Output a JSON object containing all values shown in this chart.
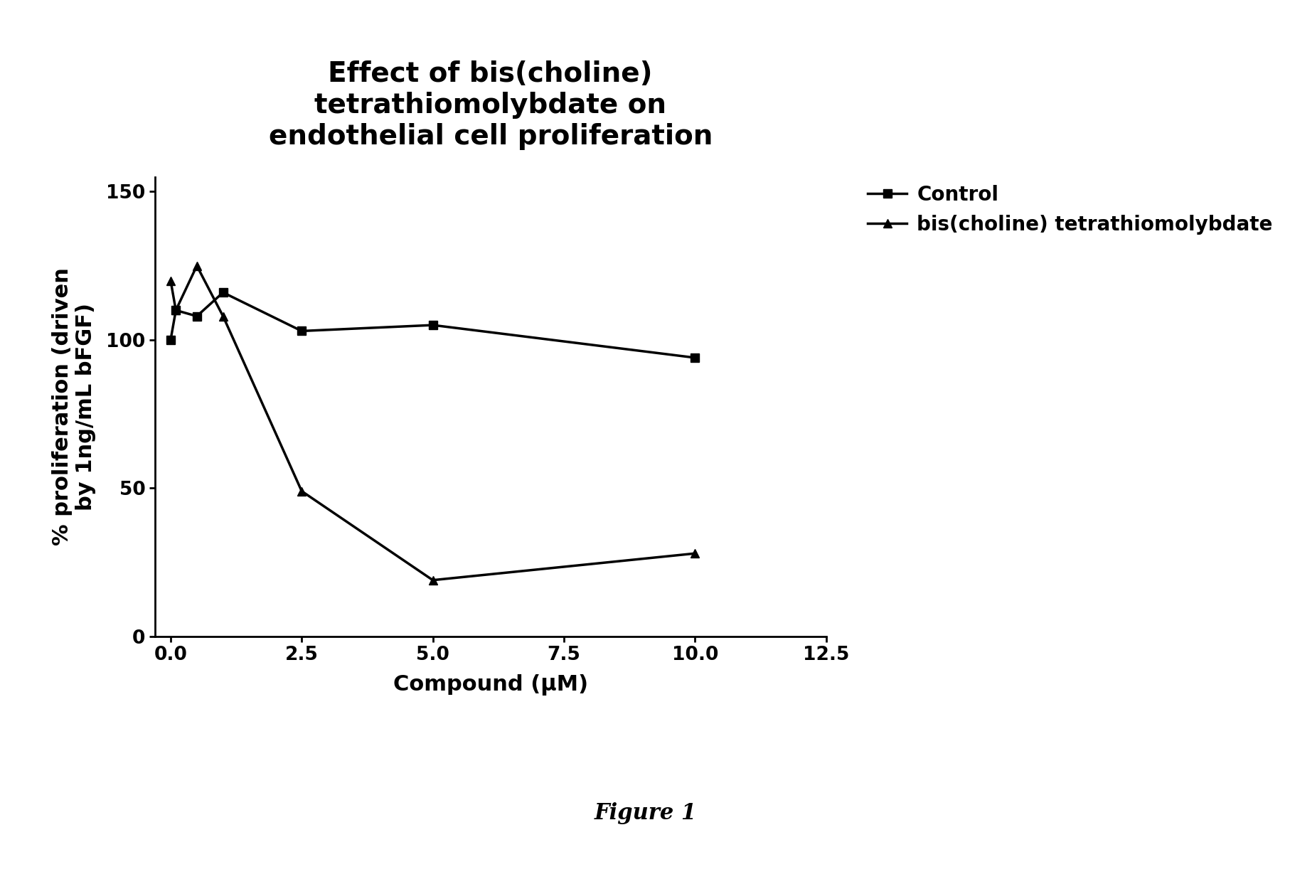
{
  "title": "Effect of bis(choline)\ntetrathiomolybdate on\nendothelial cell proliferation",
  "xlabel": "Compound (μM)",
  "ylabel": "% proliferation (driven\nby 1ng/mL bFGF)",
  "figure_caption": "Figure 1",
  "xlim": [
    -0.3,
    12.5
  ],
  "ylim": [
    0,
    155
  ],
  "xticks": [
    0.0,
    2.5,
    5.0,
    7.5,
    10.0,
    12.5
  ],
  "xtick_labels": [
    "0.0",
    "2.5",
    "5.0",
    "7.5",
    "10.0",
    "12.5"
  ],
  "yticks": [
    0,
    50,
    100,
    150
  ],
  "control_x": [
    0.0,
    0.1,
    0.5,
    1.0,
    2.5,
    5.0,
    10.0
  ],
  "control_y": [
    100,
    110,
    108,
    116,
    103,
    105,
    94
  ],
  "treat_x": [
    0.0,
    0.1,
    0.5,
    1.0,
    2.5,
    5.0,
    10.0
  ],
  "treat_y": [
    120,
    110,
    125,
    108,
    49,
    19,
    28
  ],
  "control_label": "Control",
  "treat_label": "bis(choline) tetrathiomolybdate",
  "line_color": "#000000",
  "background_color": "#ffffff",
  "title_fontsize": 28,
  "label_fontsize": 22,
  "tick_fontsize": 19,
  "legend_fontsize": 20,
  "caption_fontsize": 22
}
